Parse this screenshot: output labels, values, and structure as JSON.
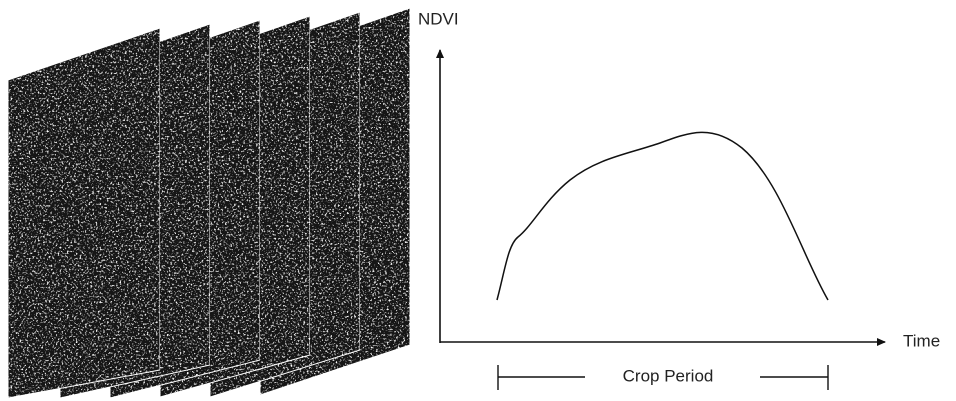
{
  "labels": {
    "y_axis": "NDVI",
    "x_axis": "Time",
    "span": "Crop Period"
  }
}
